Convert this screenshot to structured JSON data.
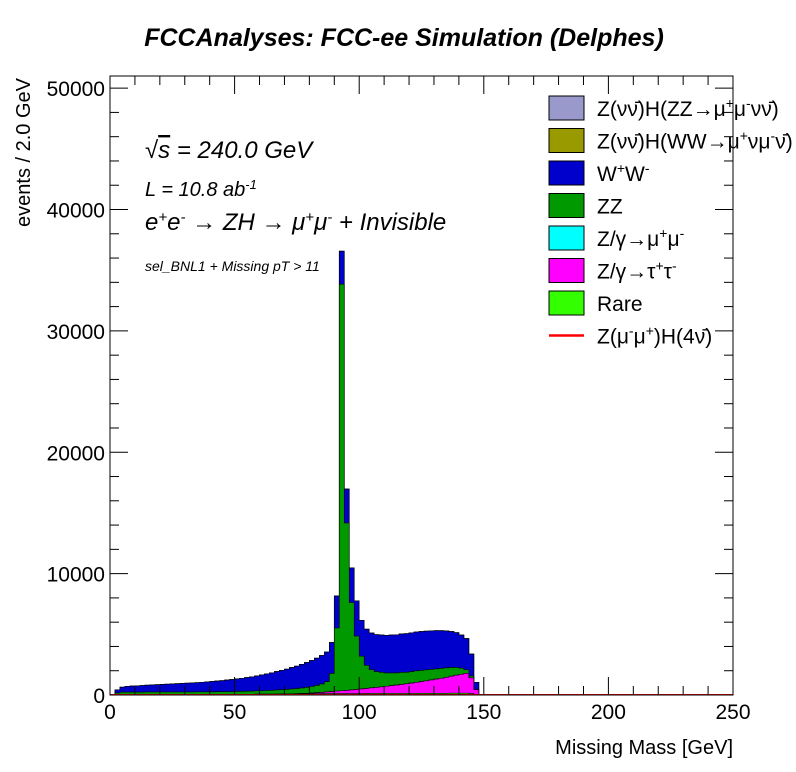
{
  "chart_data": {
    "type": "area",
    "title": "FCCAnalyses: FCC-ee Simulation (Delphes)",
    "xlabel": "Missing Mass [GeV]",
    "ylabel": "events / 2.0 GeV",
    "xlim": [
      0,
      250
    ],
    "ylim": [
      0,
      51000
    ],
    "bin_width": 2,
    "xticks": [
      0,
      50,
      100,
      150,
      200,
      250
    ],
    "yticks": [
      0,
      10000,
      20000,
      30000,
      40000,
      50000
    ],
    "stacked": true,
    "annotations": {
      "sqrt_s": "√s = 240.0 GeV",
      "lumi": "L = 10.8 ab-1",
      "process": "e+e- → ZH → μ+μ- + Invisible",
      "selection": "sel_BNL1 + Missing pT > 11"
    },
    "legend_position": "top-right",
    "bin_centers": [
      1,
      3,
      5,
      7,
      9,
      11,
      13,
      15,
      17,
      19,
      21,
      23,
      25,
      27,
      29,
      31,
      33,
      35,
      37,
      39,
      41,
      43,
      45,
      47,
      49,
      51,
      53,
      55,
      57,
      59,
      61,
      63,
      65,
      67,
      69,
      71,
      73,
      75,
      77,
      79,
      81,
      83,
      85,
      87,
      89,
      91,
      93,
      95,
      97,
      99,
      101,
      103,
      105,
      107,
      109,
      111,
      113,
      115,
      117,
      119,
      121,
      123,
      125,
      127,
      129,
      131,
      133,
      135,
      137,
      139,
      141,
      143,
      145,
      147,
      149
    ],
    "series": [
      {
        "name": "Rare",
        "color": "#33ff00",
        "values": [
          0,
          20,
          40,
          40,
          40,
          40,
          40,
          50,
          50,
          50,
          50,
          50,
          50,
          50,
          50,
          50,
          50,
          60,
          60,
          60,
          60,
          60,
          60,
          60,
          60,
          60,
          60,
          60,
          60,
          70,
          70,
          70,
          70,
          80,
          80,
          80,
          90,
          90,
          100,
          100,
          100,
          110,
          110,
          120,
          120,
          120,
          120,
          120,
          120,
          120,
          120,
          120,
          130,
          130,
          130,
          130,
          130,
          130,
          130,
          130,
          130,
          130,
          140,
          140,
          140,
          140,
          140,
          140,
          150,
          150,
          150,
          150,
          120,
          50,
          10
        ]
      },
      {
        "name": "Z/γ→τ+τ-",
        "color": "#ff00ff",
        "values": [
          0,
          0,
          0,
          0,
          0,
          0,
          0,
          0,
          0,
          0,
          0,
          0,
          0,
          0,
          0,
          0,
          0,
          0,
          0,
          0,
          0,
          0,
          0,
          0,
          0,
          0,
          0,
          0,
          0,
          0,
          0,
          0,
          0,
          0,
          0,
          0,
          10,
          20,
          30,
          40,
          60,
          80,
          100,
          130,
          160,
          200,
          230,
          260,
          300,
          340,
          380,
          420,
          460,
          500,
          540,
          590,
          640,
          690,
          740,
          790,
          850,
          910,
          970,
          1030,
          1100,
          1170,
          1240,
          1320,
          1400,
          1480,
          1560,
          1640,
          1300,
          400,
          0
        ]
      },
      {
        "name": "Z/γ→μ+μ-",
        "color": "#00ffff",
        "values": [
          0,
          0,
          0,
          0,
          0,
          0,
          0,
          0,
          0,
          0,
          0,
          0,
          0,
          0,
          0,
          0,
          0,
          0,
          0,
          0,
          0,
          0,
          0,
          0,
          0,
          0,
          0,
          0,
          0,
          0,
          0,
          0,
          0,
          0,
          0,
          0,
          0,
          0,
          0,
          0,
          0,
          0,
          0,
          0,
          0,
          0,
          0,
          0,
          0,
          0,
          0,
          0,
          0,
          0,
          0,
          0,
          0,
          0,
          0,
          0,
          0,
          0,
          0,
          0,
          0,
          0,
          0,
          0,
          0,
          0,
          0,
          0,
          0,
          0,
          0
        ]
      },
      {
        "name": "ZZ",
        "color": "#009900",
        "values": [
          0,
          150,
          200,
          200,
          200,
          200,
          200,
          200,
          200,
          200,
          200,
          200,
          200,
          200,
          200,
          200,
          200,
          200,
          200,
          200,
          200,
          210,
          210,
          220,
          220,
          230,
          240,
          250,
          260,
          270,
          280,
          300,
          320,
          340,
          360,
          380,
          400,
          420,
          450,
          490,
          540,
          600,
          700,
          850,
          1500,
          5200,
          33500,
          13800,
          7200,
          4400,
          2700,
          1900,
          1500,
          1300,
          1200,
          1100,
          1050,
          1000,
          1000,
          950,
          950,
          950,
          920,
          900,
          880,
          850,
          820,
          780,
          720,
          640,
          500,
          300,
          150,
          0,
          0
        ]
      },
      {
        "name": "W+W-",
        "color": "#0000cc",
        "values": [
          0,
          260,
          400,
          470,
          500,
          520,
          540,
          560,
          580,
          600,
          620,
          640,
          660,
          680,
          700,
          720,
          740,
          760,
          790,
          820,
          850,
          880,
          910,
          950,
          990,
          1030,
          1080,
          1130,
          1180,
          1240,
          1300,
          1370,
          1440,
          1510,
          1590,
          1670,
          1760,
          1850,
          1940,
          2040,
          2140,
          2240,
          2340,
          2440,
          2540,
          2640,
          2720,
          2790,
          2850,
          2900,
          2940,
          2980,
          3010,
          3040,
          3070,
          3100,
          3120,
          3140,
          3160,
          3180,
          3190,
          3200,
          3200,
          3190,
          3170,
          3140,
          3100,
          3040,
          2960,
          2860,
          2730,
          2560,
          1800,
          600,
          0
        ]
      },
      {
        "name": "Z(νν̄)H(WW→μ+νμ-ν̄)",
        "color": "#999900",
        "values": [
          0,
          0,
          0,
          0,
          0,
          0,
          0,
          0,
          0,
          0,
          0,
          0,
          0,
          0,
          0,
          0,
          0,
          0,
          0,
          0,
          0,
          0,
          0,
          0,
          0,
          0,
          0,
          0,
          0,
          0,
          0,
          0,
          0,
          0,
          0,
          0,
          0,
          0,
          0,
          0,
          0,
          0,
          0,
          0,
          0,
          0,
          0,
          0,
          0,
          0,
          0,
          0,
          0,
          0,
          0,
          0,
          0,
          0,
          0,
          0,
          0,
          0,
          0,
          0,
          0,
          0,
          0,
          0,
          0,
          0,
          0,
          0,
          0,
          0,
          0
        ]
      },
      {
        "name": "Z(νν̄)H(ZZ→μ+μ-νν̄)",
        "color": "#9999cc",
        "values": [
          0,
          0,
          0,
          0,
          0,
          0,
          0,
          0,
          0,
          0,
          0,
          0,
          0,
          0,
          0,
          0,
          0,
          0,
          0,
          0,
          0,
          0,
          0,
          0,
          0,
          0,
          0,
          0,
          0,
          0,
          0,
          0,
          0,
          0,
          0,
          0,
          0,
          0,
          0,
          0,
          0,
          0,
          0,
          0,
          0,
          0,
          0,
          0,
          0,
          0,
          0,
          0,
          0,
          0,
          0,
          0,
          0,
          0,
          0,
          0,
          0,
          0,
          0,
          0,
          0,
          0,
          0,
          0,
          0,
          0,
          0,
          0,
          0,
          0,
          0
        ]
      }
    ],
    "signal": {
      "name": "Z(μ-μ+)H(4ν̄)",
      "color": "#ff0000",
      "values": [
        0,
        0,
        0,
        0,
        0,
        0,
        0,
        0,
        0,
        0,
        0,
        0,
        0,
        0,
        0,
        0,
        0,
        0,
        0,
        0,
        0,
        0,
        0,
        0,
        0,
        0,
        0,
        0,
        0,
        0,
        0,
        0,
        0,
        0,
        0,
        0,
        0,
        0,
        0,
        0,
        0,
        0,
        0,
        0,
        0,
        0,
        0,
        0,
        0,
        0,
        0,
        0,
        0,
        0,
        0,
        0,
        0,
        0,
        0,
        0,
        0,
        0,
        0,
        0,
        0,
        0,
        0,
        0,
        0,
        0,
        0,
        0,
        0,
        0,
        0
      ]
    },
    "legend": [
      {
        "label": "Z(νν̄)H(ZZ→μ+μ-νν̄)",
        "color": "#9999cc",
        "kind": "box"
      },
      {
        "label": "Z(νν̄)H(WW→μ+νμ-ν̄)",
        "color": "#999900",
        "kind": "box"
      },
      {
        "label": "W+W-",
        "color": "#0000cc",
        "kind": "box"
      },
      {
        "label": "ZZ",
        "color": "#009900",
        "kind": "box"
      },
      {
        "label": "Z/γ→μ+μ-",
        "color": "#00ffff",
        "kind": "box"
      },
      {
        "label": "Z/γ→τ+τ-",
        "color": "#ff00ff",
        "kind": "box"
      },
      {
        "label": "Rare",
        "color": "#33ff00",
        "kind": "box"
      },
      {
        "label": "Z(μ-μ+)H(4ν̄)",
        "color": "#ff0000",
        "kind": "line"
      }
    ]
  }
}
